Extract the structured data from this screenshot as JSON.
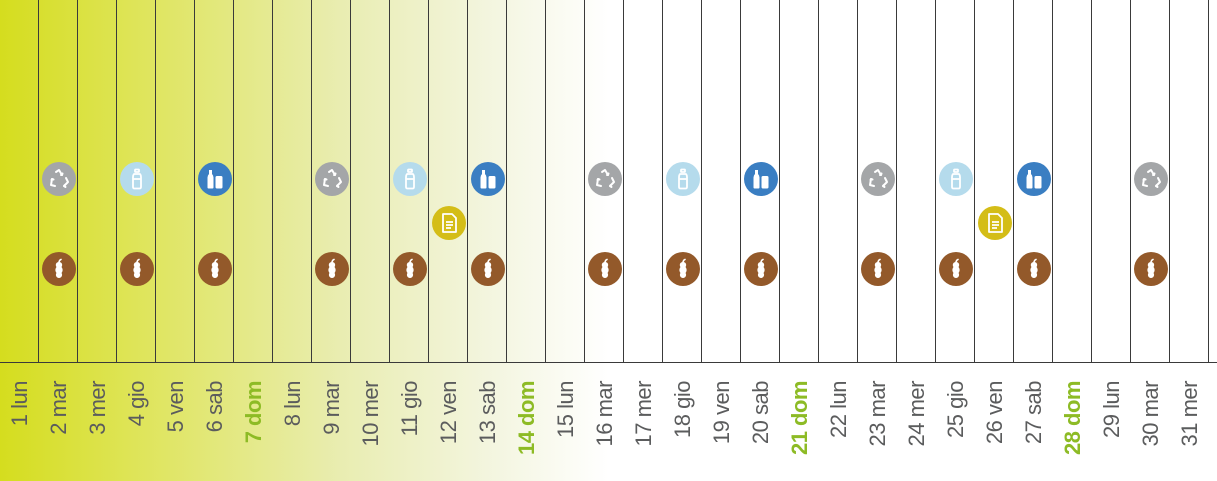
{
  "calendar": {
    "days": [
      {
        "label": "1 lun",
        "sunday": false,
        "collections": []
      },
      {
        "label": "2 mar",
        "sunday": false,
        "collections": [
          "recycle",
          "organic"
        ]
      },
      {
        "label": "3 mer",
        "sunday": false,
        "collections": []
      },
      {
        "label": "4 gio",
        "sunday": false,
        "collections": [
          "plastic",
          "organic"
        ]
      },
      {
        "label": "5 ven",
        "sunday": false,
        "collections": []
      },
      {
        "label": "6 sab",
        "sunday": false,
        "collections": [
          "glass",
          "organic"
        ]
      },
      {
        "label": "7 dom",
        "sunday": true,
        "collections": []
      },
      {
        "label": "8 lun",
        "sunday": false,
        "collections": []
      },
      {
        "label": "9 mar",
        "sunday": false,
        "collections": [
          "recycle",
          "organic"
        ]
      },
      {
        "label": "10 mer",
        "sunday": false,
        "collections": []
      },
      {
        "label": "11 gio",
        "sunday": false,
        "collections": [
          "plastic",
          "organic"
        ]
      },
      {
        "label": "12 ven",
        "sunday": false,
        "collections": [
          "paper"
        ]
      },
      {
        "label": "13 sab",
        "sunday": false,
        "collections": [
          "glass",
          "organic"
        ]
      },
      {
        "label": "14 dom",
        "sunday": true,
        "collections": []
      },
      {
        "label": "15 lun",
        "sunday": false,
        "collections": []
      },
      {
        "label": "16 mar",
        "sunday": false,
        "collections": [
          "recycle",
          "organic"
        ]
      },
      {
        "label": "17 mer",
        "sunday": false,
        "collections": []
      },
      {
        "label": "18 gio",
        "sunday": false,
        "collections": [
          "plastic",
          "organic"
        ]
      },
      {
        "label": "19 ven",
        "sunday": false,
        "collections": []
      },
      {
        "label": "20 sab",
        "sunday": false,
        "collections": [
          "glass",
          "organic"
        ]
      },
      {
        "label": "21 dom",
        "sunday": true,
        "collections": []
      },
      {
        "label": "22 lun",
        "sunday": false,
        "collections": []
      },
      {
        "label": "23 mar",
        "sunday": false,
        "collections": [
          "recycle",
          "organic"
        ]
      },
      {
        "label": "24 mer",
        "sunday": false,
        "collections": []
      },
      {
        "label": "25 gio",
        "sunday": false,
        "collections": [
          "plastic",
          "organic"
        ]
      },
      {
        "label": "26 ven",
        "sunday": false,
        "collections": [
          "paper"
        ]
      },
      {
        "label": "27 sab",
        "sunday": false,
        "collections": [
          "glass",
          "organic"
        ]
      },
      {
        "label": "28 dom",
        "sunday": true,
        "collections": []
      },
      {
        "label": "29 lun",
        "sunday": false,
        "collections": []
      },
      {
        "label": "30 mar",
        "sunday": false,
        "collections": [
          "recycle",
          "organic"
        ]
      },
      {
        "label": "31 mer",
        "sunday": false,
        "collections": []
      }
    ],
    "icon_types": {
      "recycle": {
        "icon": "recycle-icon",
        "color": "#a4a6a8"
      },
      "plastic": {
        "icon": "plastic-bottle-icon",
        "color": "#b5dbec"
      },
      "glass": {
        "icon": "glass-bottle-can-icon",
        "color": "#3a7ec2"
      },
      "paper": {
        "icon": "paper-icon",
        "color": "#d4bd17"
      },
      "organic": {
        "icon": "apple-core-icon",
        "color": "#93592a"
      }
    },
    "colors": {
      "weekday_label": "#5b5c5d",
      "sunday_label": "#8dbb25",
      "gradient_start": "#d5dd1e"
    }
  }
}
